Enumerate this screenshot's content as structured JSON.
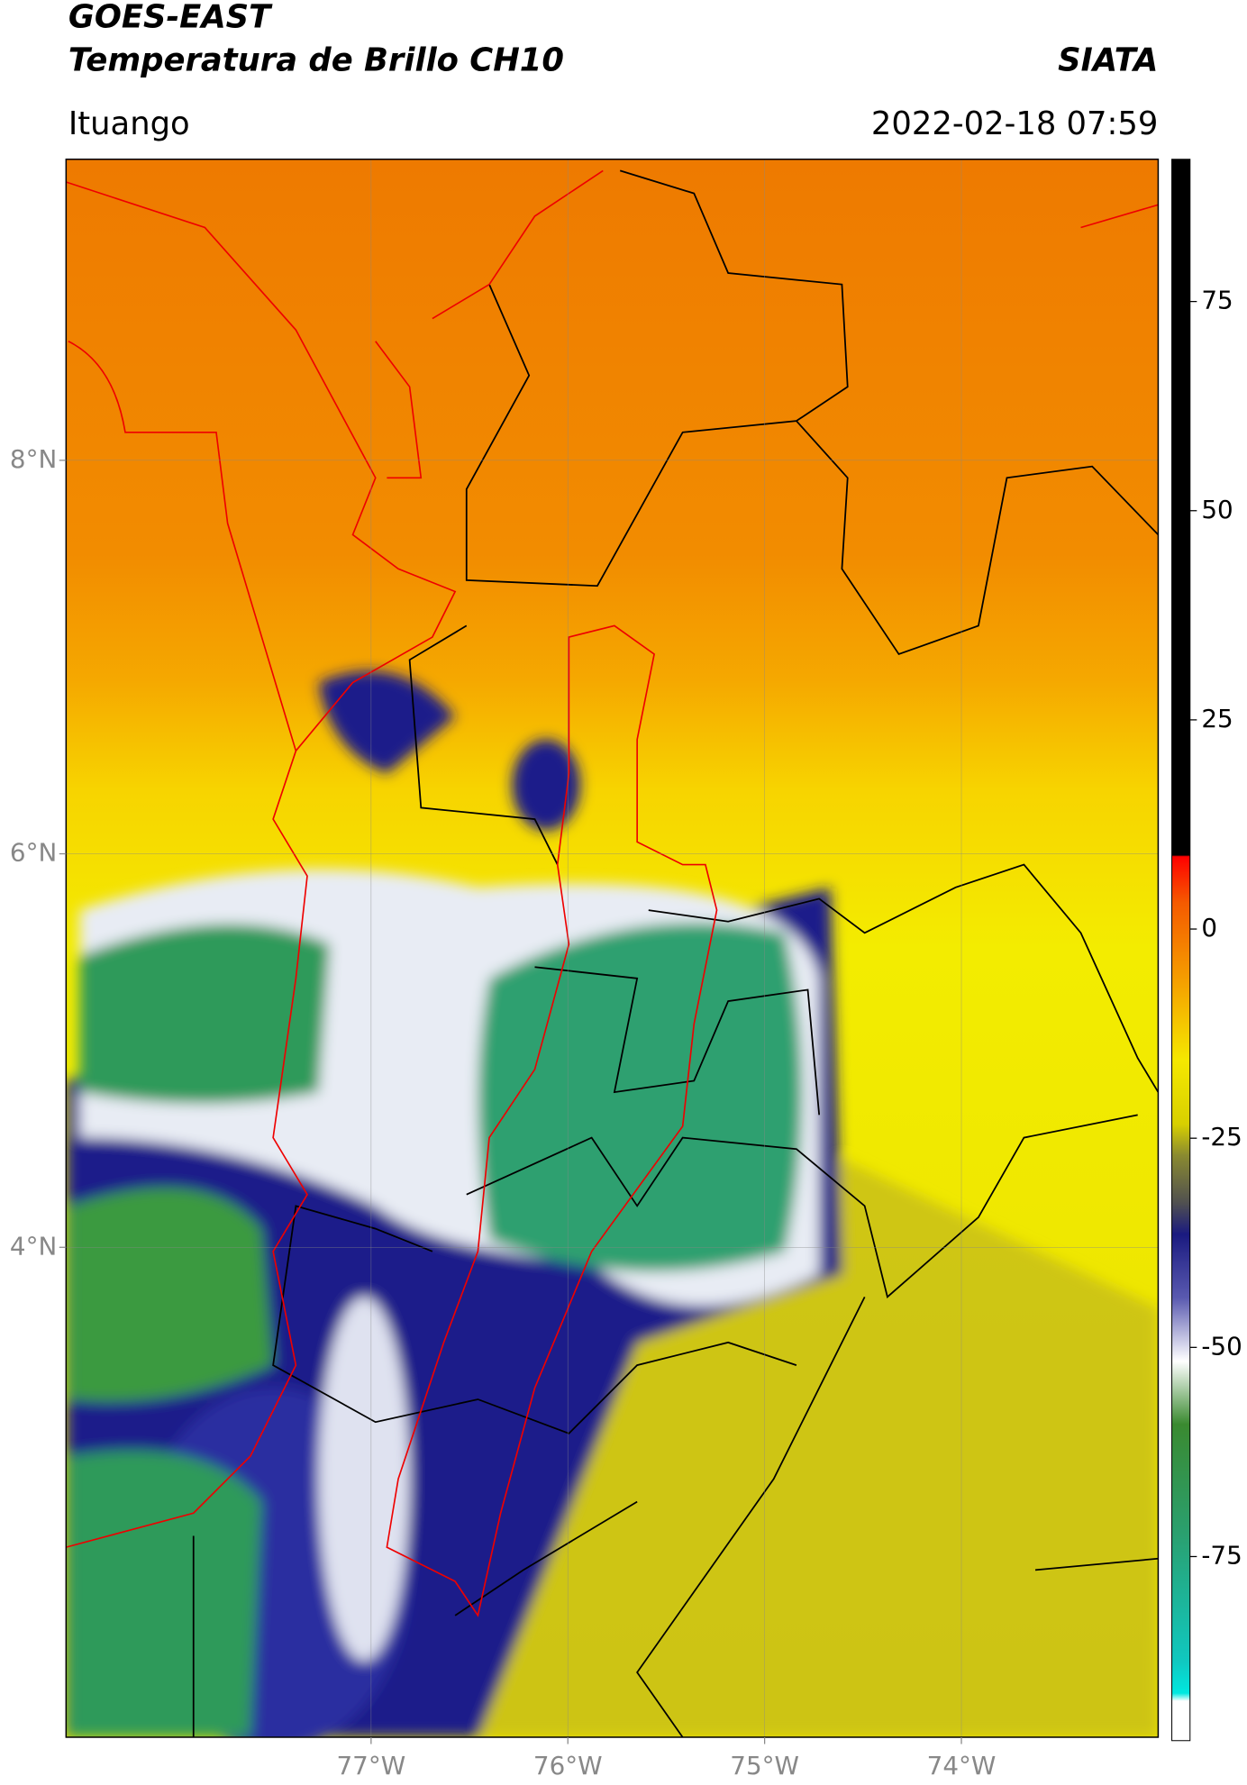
{
  "header": {
    "title": "GOES-EAST",
    "subtitle": "Temperatura de Brillo CH10",
    "brand": "SIATA",
    "region": "Ituango",
    "timestamp": "2022-02-18 07:59"
  },
  "chart_data": {
    "type": "map",
    "xlim": [
      -78.55,
      -73.0
    ],
    "ylim": [
      1.51,
      9.53
    ],
    "xticks": [
      {
        "value": -77,
        "label": "77°W"
      },
      {
        "value": -76,
        "label": "76°W"
      },
      {
        "value": -75,
        "label": "75°W"
      },
      {
        "value": -74,
        "label": "74°W"
      }
    ],
    "yticks": [
      {
        "value": 8,
        "label": "8°N"
      },
      {
        "value": 6,
        "label": "6°N"
      },
      {
        "value": 4,
        "label": "4°N"
      }
    ],
    "grid": true,
    "colorbar": {
      "lim": [
        -97,
        92
      ],
      "ticks": [
        75,
        50,
        25,
        0,
        -25,
        -50,
        -75
      ]
    }
  }
}
